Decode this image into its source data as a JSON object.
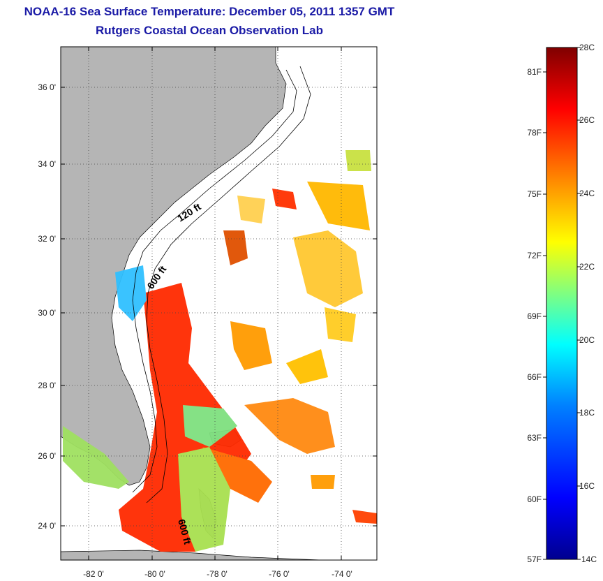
{
  "header": {
    "title": "NOAA-16 Sea Surface Temperature:  December 05, 2011 1357 GMT",
    "subtitle": "Rutgers Coastal Ocean Observation Lab"
  },
  "map": {
    "lat_labels": [
      "36 0'",
      "34 0'",
      "32 0'",
      "30 0'",
      "28 0'",
      "26 0'",
      "24 0'"
    ],
    "lon_labels": [
      "-82 0'",
      "-80 0'",
      "-78 0'",
      "-76 0'",
      "-74 0'"
    ],
    "contour_labels": [
      "120 ft",
      "600 ft",
      "600 ft"
    ],
    "colors": {
      "land": "#b5b5b5",
      "coast": "#000000",
      "water_nodata": "#ffffff"
    }
  },
  "colorbar": {
    "celsius_labels": [
      "28C",
      "26C",
      "24C",
      "22C",
      "20C",
      "18C",
      "16C",
      "14C"
    ],
    "fahrenheit_labels": [
      "81F",
      "78F",
      "75F",
      "72F",
      "69F",
      "66F",
      "63F",
      "60F",
      "57F"
    ],
    "colors": [
      "#7f0000",
      "#ff0000",
      "#ff8000",
      "#ffff00",
      "#80ff80",
      "#00ffff",
      "#0080ff",
      "#0000ff",
      "#00008f"
    ]
  }
}
